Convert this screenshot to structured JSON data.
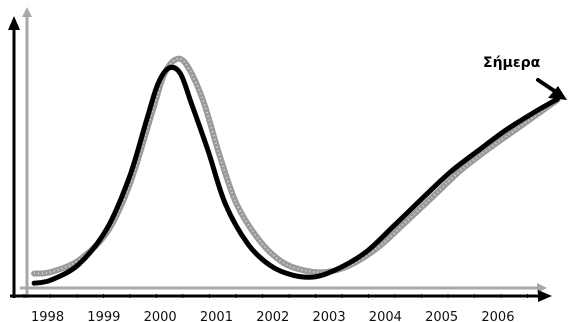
{
  "chart_data": {
    "type": "line",
    "title": "",
    "xlabel": "",
    "ylabel": "",
    "x_tick_labels": [
      "1998",
      "1999",
      "2000",
      "2001",
      "2002",
      "2003",
      "2004",
      "2005",
      "2006"
    ],
    "annotation": {
      "text": "Σήμερα"
    },
    "series": [
      {
        "style": "black-thick",
        "color": "#000000",
        "points": [
          [
            1997.7,
            0.06
          ],
          [
            1998.0,
            0.1
          ],
          [
            1998.5,
            0.3
          ],
          [
            1999.0,
            0.75
          ],
          [
            1999.4,
            1.4
          ],
          [
            1999.7,
            2.1
          ],
          [
            1999.9,
            2.55
          ],
          [
            2000.1,
            2.75
          ],
          [
            2000.3,
            2.68
          ],
          [
            2000.5,
            2.3
          ],
          [
            2000.8,
            1.7
          ],
          [
            2001.1,
            1.05
          ],
          [
            2001.5,
            0.55
          ],
          [
            2001.9,
            0.28
          ],
          [
            2002.3,
            0.16
          ],
          [
            2002.7,
            0.14
          ],
          [
            2003.1,
            0.24
          ],
          [
            2003.6,
            0.45
          ],
          [
            2004.1,
            0.78
          ],
          [
            2004.6,
            1.12
          ],
          [
            2005.1,
            1.45
          ],
          [
            2005.6,
            1.72
          ],
          [
            2006.1,
            1.98
          ],
          [
            2006.6,
            2.2
          ],
          [
            2007.0,
            2.36
          ]
        ]
      },
      {
        "style": "gray-dotted",
        "color": "#9a9a9a",
        "points": [
          [
            1997.7,
            0.18
          ],
          [
            1998.0,
            0.2
          ],
          [
            1998.5,
            0.35
          ],
          [
            1999.0,
            0.7
          ],
          [
            1999.4,
            1.3
          ],
          [
            1999.8,
            2.2
          ],
          [
            2000.0,
            2.65
          ],
          [
            2000.2,
            2.85
          ],
          [
            2000.4,
            2.8
          ],
          [
            2000.7,
            2.35
          ],
          [
            2001.0,
            1.65
          ],
          [
            2001.3,
            1.05
          ],
          [
            2001.7,
            0.6
          ],
          [
            2002.1,
            0.33
          ],
          [
            2002.5,
            0.22
          ],
          [
            2002.9,
            0.2
          ],
          [
            2003.3,
            0.28
          ],
          [
            2003.8,
            0.5
          ],
          [
            2004.3,
            0.82
          ],
          [
            2004.8,
            1.15
          ],
          [
            2005.3,
            1.48
          ],
          [
            2005.8,
            1.75
          ],
          [
            2006.3,
            2.0
          ],
          [
            2006.7,
            2.2
          ],
          [
            2007.0,
            2.35
          ]
        ]
      }
    ],
    "xlim": [
      1997.5,
      2007.0
    ],
    "ylim": [
      0,
      3.0
    ],
    "grid": false,
    "legend": "none"
  }
}
